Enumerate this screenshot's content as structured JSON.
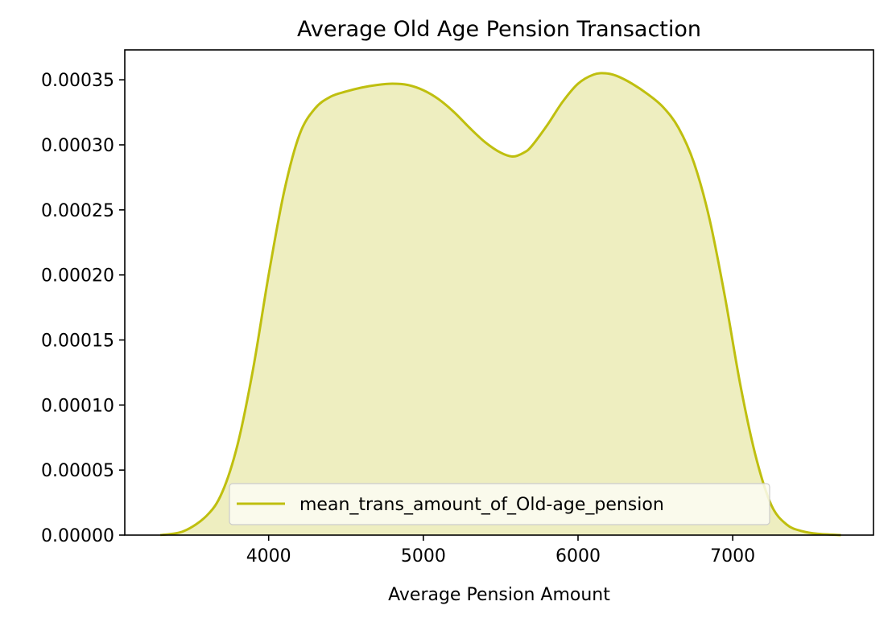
{
  "chart_data": {
    "type": "area",
    "title": "Average Old Age Pension Transaction",
    "xlabel": "Average Pension Amount",
    "ylabel": "",
    "xlim": [
      3070,
      7910
    ],
    "ylim": [
      0,
      0.000373
    ],
    "x_ticks": [
      {
        "value": 4000,
        "label": "4000"
      },
      {
        "value": 5000,
        "label": "5000"
      },
      {
        "value": 6000,
        "label": "6000"
      },
      {
        "value": 7000,
        "label": "7000"
      }
    ],
    "y_ticks": [
      {
        "value": 0.0,
        "label": "0.00000"
      },
      {
        "value": 5e-05,
        "label": "0.00005"
      },
      {
        "value": 0.0001,
        "label": "0.00010"
      },
      {
        "value": 0.00015,
        "label": "0.00015"
      },
      {
        "value": 0.0002,
        "label": "0.00020"
      },
      {
        "value": 0.00025,
        "label": "0.00025"
      },
      {
        "value": 0.0003,
        "label": "0.00030"
      },
      {
        "value": 0.00035,
        "label": "0.00035"
      }
    ],
    "grid": false,
    "legend_position": "lower center",
    "colors": {
      "line": "#bfbf0f",
      "fill": "#eeeec0"
    },
    "series": [
      {
        "name": "mean_trans_amount_of_Old-age_pension",
        "x": [
          3300,
          3450,
          3600,
          3700,
          3800,
          3900,
          4000,
          4100,
          4200,
          4300,
          4400,
          4500,
          4600,
          4700,
          4800,
          4900,
          5000,
          5100,
          5200,
          5300,
          5400,
          5500,
          5580,
          5650,
          5700,
          5800,
          5900,
          6000,
          6100,
          6180,
          6250,
          6350,
          6450,
          6550,
          6650,
          6750,
          6850,
          6950,
          7050,
          7150,
          7250,
          7350,
          7450,
          7550,
          7700
        ],
        "y": [
          0.0,
          3e-06,
          1.5e-05,
          3.3e-05,
          7e-05,
          0.000128,
          0.0002,
          0.000264,
          0.000308,
          0.000328,
          0.000337,
          0.000341,
          0.000344,
          0.000346,
          0.000347,
          0.000346,
          0.000342,
          0.000335,
          0.000325,
          0.000313,
          0.000302,
          0.000294,
          0.000291,
          0.000294,
          0.000299,
          0.000315,
          0.000333,
          0.000347,
          0.000354,
          0.000355,
          0.000353,
          0.000347,
          0.000339,
          0.000329,
          0.000313,
          0.000286,
          0.000243,
          0.000183,
          0.000115,
          6e-05,
          2.3e-05,
          8e-06,
          3e-06,
          1e-06,
          0.0
        ]
      }
    ]
  }
}
